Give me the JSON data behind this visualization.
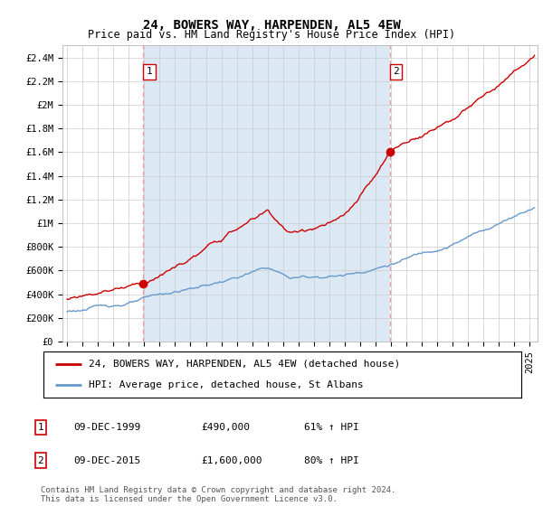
{
  "title": "24, BOWERS WAY, HARPENDEN, AL5 4EW",
  "subtitle": "Price paid vs. HM Land Registry's House Price Index (HPI)",
  "ylabel_ticks": [
    "£0",
    "£200K",
    "£400K",
    "£600K",
    "£800K",
    "£1M",
    "£1.2M",
    "£1.4M",
    "£1.6M",
    "£1.8M",
    "£2M",
    "£2.2M",
    "£2.4M"
  ],
  "ytick_values": [
    0,
    200000,
    400000,
    600000,
    800000,
    1000000,
    1200000,
    1400000,
    1600000,
    1800000,
    2000000,
    2200000,
    2400000
  ],
  "ylim": [
    0,
    2500000
  ],
  "xlim_start": 1994.7,
  "xlim_end": 2025.5,
  "sale1_year": 1999.92,
  "sale1_price": 490000,
  "sale2_year": 2015.92,
  "sale2_price": 1600000,
  "legend_label_red": "24, BOWERS WAY, HARPENDEN, AL5 4EW (detached house)",
  "legend_label_blue": "HPI: Average price, detached house, St Albans",
  "table_rows": [
    [
      "1",
      "09-DEC-1999",
      "£490,000",
      "61% ↑ HPI"
    ],
    [
      "2",
      "09-DEC-2015",
      "£1,600,000",
      "80% ↑ HPI"
    ]
  ],
  "footnote": "Contains HM Land Registry data © Crown copyright and database right 2024.\nThis data is licensed under the Open Government Licence v3.0.",
  "red_color": "#cc0000",
  "blue_color": "#6699cc",
  "fill_color": "#dce9f5",
  "dashed_color": "#ee9999",
  "background_color": "#ffffff",
  "grid_color": "#cccccc",
  "title_fontsize": 10,
  "subtitle_fontsize": 8.5,
  "tick_fontsize": 7.5,
  "legend_fontsize": 8,
  "table_fontsize": 8
}
